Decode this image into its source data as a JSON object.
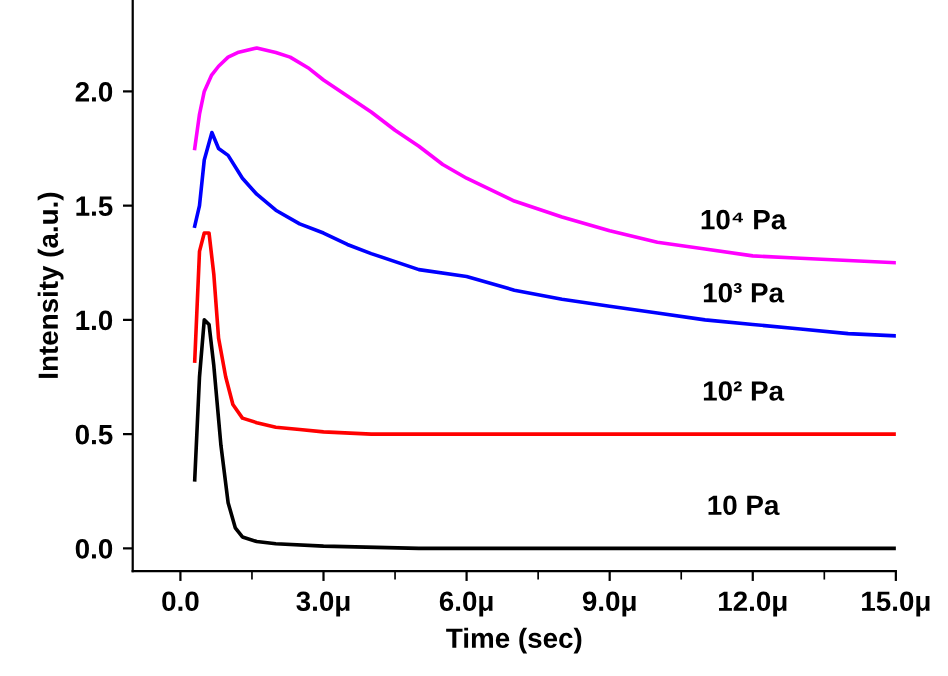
{
  "chart_data": {
    "type": "line",
    "xlabel": "Time (sec)",
    "ylabel": "Intensity (a.u.)",
    "xlim": [
      -1.0,
      15.0
    ],
    "ylim": [
      -0.1,
      2.4
    ],
    "xticks": [
      {
        "value": 0,
        "label": "0.0"
      },
      {
        "value": 3,
        "label": "3.0μ"
      },
      {
        "value": 6,
        "label": "6.0μ"
      },
      {
        "value": 9,
        "label": "9.0μ"
      },
      {
        "value": 12,
        "label": "12.0μ"
      },
      {
        "value": 15,
        "label": "15.0μ"
      }
    ],
    "yticks": [
      {
        "value": 0,
        "label": "0.0"
      },
      {
        "value": 0.5,
        "label": "0.5"
      },
      {
        "value": 1,
        "label": "1.0"
      },
      {
        "value": 1.5,
        "label": "1.5"
      },
      {
        "value": 2,
        "label": "2.0"
      }
    ],
    "grid": false,
    "legend": false,
    "marker": "none",
    "line_style": "solid",
    "series": [
      {
        "name": "10 Pa",
        "color": "#000000",
        "x": [
          0.3,
          0.4,
          0.5,
          0.6,
          0.7,
          0.85,
          1.0,
          1.15,
          1.3,
          1.6,
          2.0,
          3.0,
          5.0,
          8.0,
          11.0,
          15.0
        ],
        "values": [
          0.3,
          0.75,
          1.0,
          0.98,
          0.8,
          0.45,
          0.2,
          0.09,
          0.05,
          0.03,
          0.02,
          0.01,
          0.0,
          0.0,
          0.0,
          0.0
        ]
      },
      {
        "name": "10² Pa",
        "color": "#ff0000",
        "x": [
          0.3,
          0.4,
          0.5,
          0.6,
          0.7,
          0.8,
          0.95,
          1.1,
          1.3,
          1.6,
          2.0,
          2.5,
          3.0,
          4.0,
          6.0,
          9.0,
          12.0,
          15.0
        ],
        "values": [
          0.82,
          1.3,
          1.38,
          1.38,
          1.2,
          0.92,
          0.75,
          0.63,
          0.57,
          0.55,
          0.53,
          0.52,
          0.51,
          0.5,
          0.5,
          0.5,
          0.5,
          0.5
        ]
      },
      {
        "name": "10³ Pa",
        "color": "#0000ff",
        "x": [
          0.3,
          0.4,
          0.5,
          0.66,
          0.8,
          1.0,
          1.3,
          1.6,
          2.0,
          2.5,
          3.0,
          3.5,
          4.0,
          5.0,
          6.0,
          7.0,
          8.0,
          9.0,
          10.0,
          11.0,
          12.0,
          13.0,
          14.0,
          15.0
        ],
        "values": [
          1.41,
          1.5,
          1.7,
          1.82,
          1.75,
          1.72,
          1.62,
          1.55,
          1.48,
          1.42,
          1.38,
          1.33,
          1.29,
          1.22,
          1.19,
          1.13,
          1.09,
          1.06,
          1.03,
          1.0,
          0.98,
          0.96,
          0.94,
          0.93
        ]
      },
      {
        "name": "10⁴ Pa",
        "color": "#ff00ff",
        "x": [
          0.3,
          0.4,
          0.5,
          0.65,
          0.8,
          1.0,
          1.2,
          1.6,
          2.0,
          2.3,
          2.7,
          3.0,
          3.5,
          4.0,
          4.5,
          5.0,
          5.5,
          6.0,
          7.0,
          8.0,
          9.0,
          10.0,
          11.0,
          12.0,
          13.0,
          14.0,
          15.0
        ],
        "values": [
          1.75,
          1.9,
          2.0,
          2.07,
          2.11,
          2.15,
          2.17,
          2.19,
          2.17,
          2.15,
          2.1,
          2.05,
          1.98,
          1.91,
          1.83,
          1.76,
          1.68,
          1.62,
          1.52,
          1.45,
          1.39,
          1.34,
          1.31,
          1.28,
          1.27,
          1.26,
          1.25
        ]
      }
    ]
  }
}
